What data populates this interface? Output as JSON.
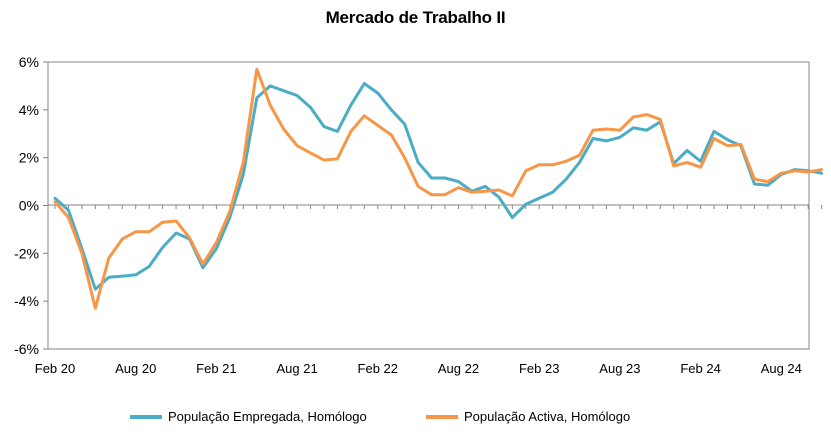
{
  "chart_data": {
    "type": "line",
    "title": "Mercado de Trabalho  II",
    "xlabel": "",
    "ylabel": "",
    "ylim": [
      -6,
      6
    ],
    "y_ticks": [
      "6%",
      "4%",
      "2%",
      "0%",
      "-2%",
      "-4%",
      "-6%"
    ],
    "y_tick_values": [
      6,
      4,
      2,
      0,
      -2,
      -4,
      -6
    ],
    "x_tick_labels": [
      "Feb 20",
      "Aug 20",
      "Feb 21",
      "Aug 21",
      "Feb 22",
      "Aug 22",
      "Feb 23",
      "Aug 23",
      "Feb 24",
      "Aug 24"
    ],
    "x_tick_index": [
      0,
      6,
      12,
      18,
      24,
      30,
      36,
      42,
      48,
      54
    ],
    "x_count": 58,
    "grid": false,
    "legend_position": "bottom",
    "series": [
      {
        "name": "População Empregada, Homólogo",
        "color": "#4BACC6",
        "values": [
          0.3,
          -0.2,
          -1.8,
          -3.5,
          -3.0,
          -2.95,
          -2.9,
          -2.55,
          -1.75,
          -1.15,
          -1.4,
          -2.6,
          -1.8,
          -0.5,
          1.3,
          4.5,
          5.0,
          4.8,
          4.6,
          4.1,
          3.3,
          3.1,
          4.2,
          5.1,
          4.7,
          4.0,
          3.4,
          1.8,
          1.15,
          1.15,
          1.0,
          0.6,
          0.8,
          0.35,
          -0.5,
          0.05,
          0.3,
          0.55,
          1.1,
          1.8,
          2.8,
          2.7,
          2.85,
          3.25,
          3.15,
          3.5,
          1.75,
          2.3,
          1.85,
          3.1,
          2.75,
          2.5,
          0.9,
          0.85,
          1.3,
          1.5,
          1.45,
          1.35
        ]
      },
      {
        "name": "População Activa, Homólogo",
        "color": "#F79646",
        "values": [
          0.15,
          -0.5,
          -2.0,
          -4.3,
          -2.2,
          -1.4,
          -1.1,
          -1.1,
          -0.7,
          -0.65,
          -1.35,
          -2.45,
          -1.55,
          -0.25,
          1.8,
          5.7,
          4.2,
          3.2,
          2.5,
          2.2,
          1.9,
          1.95,
          3.1,
          3.75,
          3.35,
          2.95,
          2.0,
          0.8,
          0.45,
          0.45,
          0.75,
          0.55,
          0.6,
          0.65,
          0.4,
          1.45,
          1.7,
          1.7,
          1.85,
          2.1,
          3.15,
          3.2,
          3.15,
          3.7,
          3.8,
          3.6,
          1.65,
          1.8,
          1.6,
          2.8,
          2.5,
          2.55,
          1.1,
          1.0,
          1.35,
          1.45,
          1.4,
          1.5
        ]
      }
    ]
  }
}
